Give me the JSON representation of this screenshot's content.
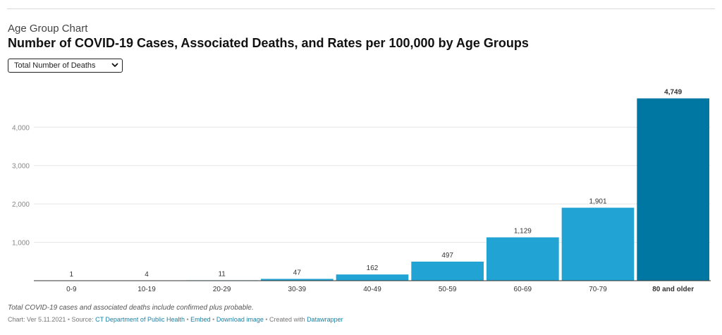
{
  "header": {
    "kicker": "Age Group Chart",
    "title": "Number of COVID-19 Cases, Associated Deaths, and Rates per 100,000 by Age Groups"
  },
  "dropdown": {
    "selected": "Total Number of Deaths",
    "icon": "chevron-down-icon"
  },
  "chart_data": {
    "type": "bar",
    "categories": [
      "0-9",
      "10-19",
      "20-29",
      "30-39",
      "40-49",
      "50-59",
      "60-69",
      "70-79",
      "80 and older"
    ],
    "values": [
      1,
      4,
      11,
      47,
      162,
      497,
      1129,
      1901,
      4749
    ],
    "value_labels": [
      "1",
      "4",
      "11",
      "47",
      "162",
      "497",
      "1,129",
      "1,901",
      "4,749"
    ],
    "highlight_index": 8,
    "yticks": [
      1000,
      2000,
      3000,
      4000
    ],
    "ytick_labels": [
      "1,000",
      "2,000",
      "3,000",
      "4,000"
    ],
    "ylim": [
      0,
      4960
    ],
    "grid": true,
    "colors": {
      "bar": "#21a3d3",
      "highlight": "#0076a3",
      "grid": "#e5e5e5",
      "axis": "#333333"
    }
  },
  "footer": {
    "note": "Total COVID-19 cases and associated deaths include confirmed plus probable.",
    "prefix": "Chart: Ver 5.11.2021",
    "source_label": "Source: ",
    "source_link": "CT Department of Public Health",
    "embed_link": "Embed",
    "download_link": "Download image",
    "created_label": "Created with ",
    "created_link": "Datawrapper"
  }
}
